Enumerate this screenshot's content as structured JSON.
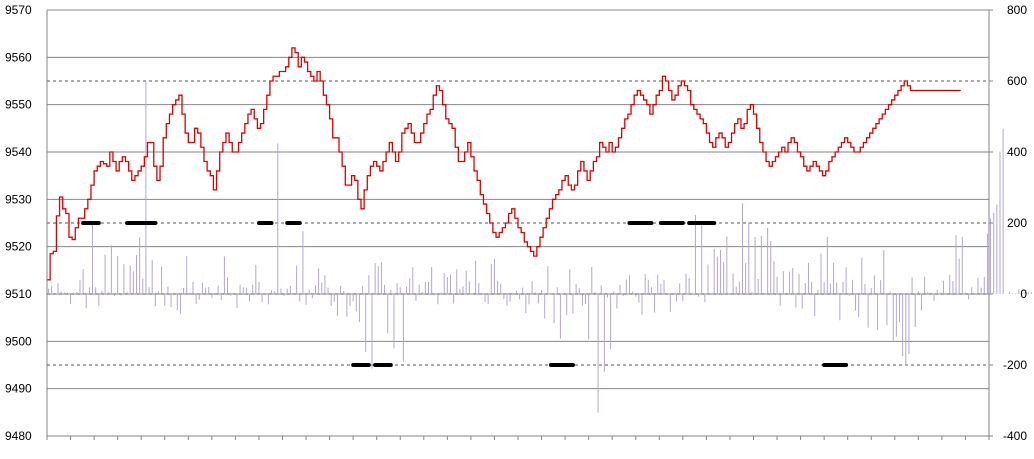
{
  "chart_data": {
    "type": "line",
    "title": "",
    "xlabel": "",
    "ylabel": "",
    "y_left": {
      "range": [
        9480,
        9570
      ],
      "ticks": [
        "9570",
        "9560",
        "9550",
        "9540",
        "9530",
        "9520",
        "9510",
        "9500",
        "9490",
        "9480"
      ]
    },
    "y_right": {
      "range": [
        -400,
        800
      ],
      "ticks": [
        "800",
        "600",
        "400",
        "200",
        "0",
        "-200",
        "-400"
      ]
    },
    "gridlines": "horizontal at every left-axis tick",
    "reference_lines_right_axis": [
      600,
      200,
      -200
    ],
    "zero_line_right_axis": 0,
    "x_points": 300,
    "series": [
      {
        "axis": "left",
        "color": "#e00000",
        "values": [
          9513.0,
          9518.5,
          9519.0,
          9526.5,
          9530.5,
          9528.0,
          9527.0,
          9522.0,
          9521.5,
          9524.0,
          9526.0,
          9526.0,
          9528.0,
          9530.0,
          9533.0,
          9536.0,
          9537.0,
          9538.0,
          9537.5,
          9537.0,
          9540.0,
          9538.0,
          9536.0,
          9538.0,
          9539.0,
          9538.0,
          9536.0,
          9534.0,
          9535.0,
          9536.0,
          9537.0,
          9539.0,
          9542.0,
          9542.0,
          9537.0,
          9534.0,
          9537.0,
          9543.0,
          9546.0,
          9548.0,
          9550.0,
          9551.0,
          9552.0,
          9548.0,
          9544.0,
          9542.0,
          9542.0,
          9545.0,
          9544.0,
          9541.0,
          9538.0,
          9536.0,
          9535.0,
          9532.0,
          9536.0,
          9540.0,
          9542.0,
          9544.0,
          9542.0,
          9540.0,
          9540.0,
          9542.0,
          9544.0,
          9546.0,
          9548.0,
          9549.0,
          9547.0,
          9545.0,
          9546.0,
          9549.0,
          9552.0,
          9555.0,
          9556.0,
          9556.0,
          9557.0,
          9557.0,
          9558.0,
          9560.0,
          9562.0,
          9561.0,
          9558.0,
          9560.0,
          9559.0,
          9557.0,
          9556.0,
          9555.0,
          9557.0,
          9555.0,
          9552.0,
          9550.0,
          9547.0,
          9543.0,
          9543.0,
          9540.0,
          9537.0,
          9533.0,
          9533.0,
          9535.0,
          9534.0,
          9530.0,
          9528.0,
          9532.0,
          9535.0,
          9537.0,
          9538.0,
          9537.0,
          9536.0,
          9538.0,
          9540.0,
          9542.0,
          9540.0,
          9538.0,
          9540.0,
          9544.0,
          9545.0,
          9546.0,
          9544.0,
          9542.0,
          9542.0,
          9544.0,
          9546.0,
          9548.0,
          9549.0,
          9552.0,
          9554.0,
          9553.0,
          9550.0,
          9547.0,
          9546.0,
          9545.0,
          9541.0,
          9538.0,
          9538.0,
          9540.0,
          9542.0,
          9539.0,
          9536.0,
          9534.0,
          9531.0,
          9529.0,
          9527.0,
          9525.0,
          9523.0,
          9522.0,
          9523.0,
          9524.0,
          9525.0,
          9527.0,
          9528.0,
          9526.0,
          9524.0,
          9523.0,
          9521.0,
          9520.0,
          9519.0,
          9518.0,
          9520.0,
          9522.0,
          9524.0,
          9526.0,
          9528.0,
          9530.0,
          9531.0,
          9532.0,
          9534.0,
          9535.0,
          9533.0,
          9532.0,
          9533.0,
          9536.0,
          9538.0,
          9536.0,
          9534.0,
          9536.0,
          9538.0,
          9539.0,
          9542.0,
          9541.0,
          9540.0,
          9542.0,
          9540.0,
          9541.0,
          9543.0,
          9545.0,
          9547.0,
          9548.0,
          9550.0,
          9552.0,
          9553.0,
          9552.0,
          9551.0,
          9550.0,
          9548.0,
          9550.0,
          9552.0,
          9553.0,
          9556.0,
          9555.0,
          9553.0,
          9551.0,
          9552.0,
          9554.0,
          9555.0,
          9554.0,
          9553.0,
          9550.0,
          9549.0,
          9548.0,
          9547.0,
          9546.0,
          9544.0,
          9542.0,
          9541.0,
          9543.0,
          9544.0,
          9543.0,
          9541.0,
          9542.0,
          9544.0,
          9546.0,
          9547.0,
          9545.0,
          9546.0,
          9549.0,
          9550.0,
          9548.0,
          9545.0,
          9542.0,
          9540.0,
          9538.0,
          9537.0,
          9538.0,
          9539.0,
          9540.0,
          9541.0,
          9540.0,
          9542.0,
          9543.0,
          9542.0,
          9540.0,
          9539.0,
          9537.0,
          9536.0,
          9537.0,
          9538.0,
          9537.0,
          9536.0,
          9535.0,
          9536.0,
          9538.0,
          9539.0,
          9540.0,
          9541.0,
          9542.0,
          9543.0,
          9542.0,
          9541.0,
          9540.0,
          9540.0,
          9541.0,
          9542.0,
          9543.0,
          9544.0,
          9545.0,
          9546.0,
          9547.0,
          9548.0,
          9549.0,
          9550.0,
          9551.0,
          9552.0,
          9553.0,
          9554.0,
          9555.0,
          9554.0,
          9553.0,
          9553.0,
          9553.0,
          9553.0,
          9553.0,
          9553.0,
          9553.0,
          9553.0,
          9553.0,
          9553.0,
          9553.0,
          9553.0,
          9553.0,
          9553.0,
          9553.0,
          9553.0
        ]
      },
      {
        "axis": "right",
        "color": "#b4a7cc",
        "values": [
          15,
          23,
          0,
          31,
          7,
          5,
          4,
          -28,
          5,
          6,
          39,
          70,
          -40,
          19,
          197,
          19,
          -33,
          9,
          111,
          5,
          137,
          -6,
          107,
          -4,
          84,
          6,
          80,
          64,
          110,
          160,
          43,
          598,
          19,
          96,
          -35,
          8,
          77,
          -33,
          21,
          -37,
          4,
          -46,
          -56,
          17,
          107,
          4,
          34,
          -28,
          -16,
          33,
          18,
          19,
          -11,
          -3,
          24,
          -17,
          106,
          47,
          -5,
          3,
          -39,
          26,
          19,
          18,
          -21,
          26,
          82,
          34,
          -23,
          1,
          -29,
          10,
          7,
          424,
          15,
          -6,
          15,
          23,
          -2,
          80,
          -21,
          177,
          -30,
          13,
          -12,
          25,
          72,
          33,
          53,
          18,
          -34,
          -22,
          -61,
          23,
          8,
          -64,
          -34,
          -21,
          -49,
          -79,
          22,
          -163,
          53,
          -210,
          87,
          79,
          89,
          26,
          -111,
          12,
          -153,
          31,
          19,
          -191,
          21,
          43,
          76,
          -19,
          27,
          6,
          34,
          34,
          76,
          -4,
          -29,
          4,
          59,
          48,
          55,
          -27,
          69,
          14,
          22,
          66,
          36,
          -2,
          94,
          31,
          -2,
          -22,
          -28,
          85,
          99,
          37,
          29,
          -14,
          -33,
          -22,
          -3,
          9,
          -15,
          18,
          -54,
          -29,
          37,
          5,
          -26,
          11,
          -69,
          78,
          2,
          -82,
          19,
          -126,
          1,
          -59,
          70,
          -55,
          28,
          17,
          -33,
          -28,
          -128,
          76,
          6,
          -334,
          24,
          -219,
          -10,
          -156,
          7,
          -41,
          26,
          -6,
          41,
          53,
          7,
          -7,
          -24,
          -58,
          56,
          40,
          19,
          -52,
          55,
          29,
          40,
          1,
          -51,
          2,
          -21,
          30,
          -20,
          57,
          45,
          1,
          223,
          -7,
          204,
          -23,
          83,
          -3,
          127,
          105,
          124,
          90,
          162,
          2,
          58,
          21,
          35,
          255,
          87,
          202,
          6,
          161,
          42,
          164,
          3,
          186,
          149,
          92,
          49,
          -33,
          64,
          3,
          63,
          73,
          -38,
          56,
          -41,
          31,
          88,
          34,
          -62,
          12,
          114,
          33,
          161,
          30,
          88,
          32,
          -74,
          34,
          75,
          -5,
          40,
          -47,
          -66,
          102,
          28,
          -95,
          17,
          52,
          -101,
          39,
          124,
          -88,
          6,
          -136,
          -120,
          -79,
          -175,
          -203,
          -169,
          47,
          -93,
          8,
          -46,
          49,
          5,
          4,
          -20,
          12,
          4,
          37,
          2,
          54,
          37,
          166,
          100,
          161,
          4,
          -15,
          19,
          -3,
          46,
          18,
          48,
          170,
          213,
          229,
          252,
          401,
          465,
          0,
          7,
          2,
          2,
          14,
          2,
          5,
          5,
          5
        ]
      }
    ],
    "markers": {
      "color": "#000000",
      "axis": "right",
      "levels": [
        {
          "value": 200,
          "x_index_ranges": [
            [
              11,
              16
            ],
            [
              25,
              34
            ],
            [
              67,
              71
            ],
            [
              76,
              80
            ],
            [
              185,
              189
            ],
            [
              189,
              192
            ],
            [
              195,
              202
            ],
            [
              204,
              212
            ]
          ]
        },
        {
          "value": -200,
          "x_index_ranges": [
            [
              97,
              102
            ],
            [
              104,
              109
            ],
            [
              160,
              167
            ],
            [
              247,
              254
            ]
          ]
        }
      ]
    }
  }
}
